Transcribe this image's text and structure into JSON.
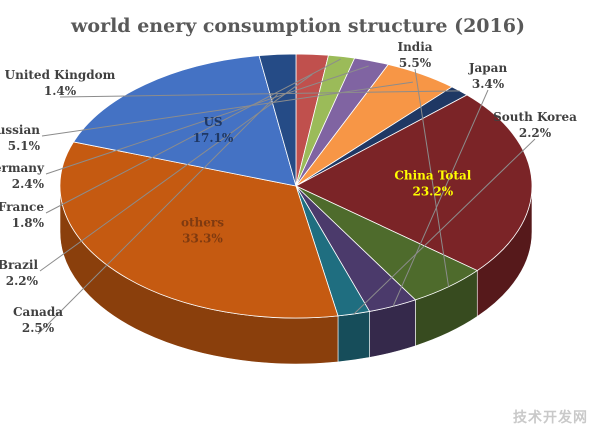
{
  "chart_data": {
    "type": "pie",
    "style": "3d",
    "title": "world enery consumption structure (2016)",
    "legend": "none",
    "series": [
      {
        "name": "China Total",
        "value": 23.2,
        "label": "23.2%",
        "color": "#7b2427"
      },
      {
        "name": "India",
        "value": 5.5,
        "label": "5.5%",
        "color": "#4e6b2c"
      },
      {
        "name": "Japan",
        "value": 3.4,
        "label": "3.4%",
        "color": "#4b3a6b"
      },
      {
        "name": "South Korea",
        "value": 2.2,
        "label": "2.2%",
        "color": "#1f6e80"
      },
      {
        "name": "others",
        "value": 33.3,
        "label": "33.3%",
        "color": "#c55a11"
      },
      {
        "name": "US",
        "value": 17.1,
        "label": "17.1%",
        "color": "#4472c4"
      },
      {
        "name": "Canada",
        "value": 2.5,
        "label": "2.5%",
        "color": "#254b86"
      },
      {
        "name": "Brazil",
        "value": 2.2,
        "label": "2.2%",
        "color": "#c0504d"
      },
      {
        "name": "France",
        "value": 1.8,
        "label": "1.8%",
        "color": "#9bbb59"
      },
      {
        "name": "Germany",
        "value": 2.4,
        "label": "2.4%",
        "color": "#8064a2"
      },
      {
        "name": "Russian",
        "value": 5.1,
        "label": "5.1%",
        "color": "#f79646"
      },
      {
        "name": "United Kingdom",
        "value": 1.4,
        "label": "1.4%",
        "color": "#1f3864"
      }
    ]
  },
  "watermark": "技术开发网"
}
